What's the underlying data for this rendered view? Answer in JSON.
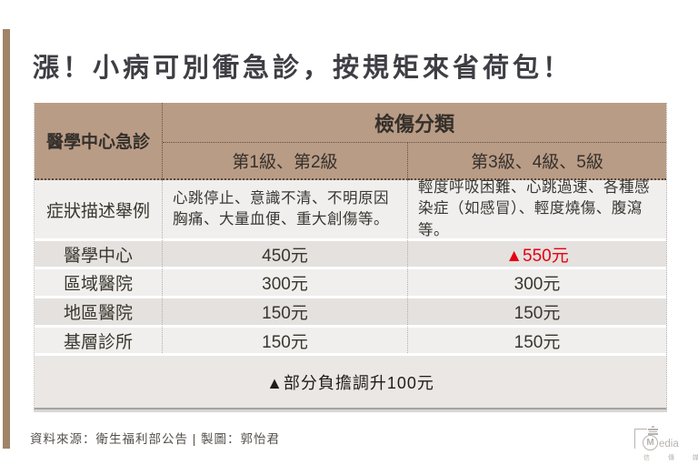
{
  "page": {
    "source_credit": "資料來源：衛生福利部公告 | 製圖：郭怡君"
  },
  "chart_data": {
    "type": "table",
    "title": "漲！小病可別衝急診，按規矩來省荷包！",
    "corner_header": "醫學中心急診",
    "group_header": "檢傷分類",
    "columns": [
      "第1級、第2級",
      "第3級、4級、5級"
    ],
    "rows": [
      {
        "label": "症狀描述舉例",
        "c1": "心跳停止、意識不清、不明原因胸痛、大量血便、重大創傷等。",
        "c2": "輕度呼吸困難、心跳過速、各種感染症（如感冒）、輕度燒傷、腹瀉等。"
      },
      {
        "label": "醫學中心",
        "c1": "450元",
        "c2": "▲550元"
      },
      {
        "label": "區域醫院",
        "c1": "300元",
        "c2": "300元"
      },
      {
        "label": "地區醫院",
        "c1": "150元",
        "c2": "150元"
      },
      {
        "label": "基層診所",
        "c1": "150元",
        "c2": "150元"
      }
    ],
    "note": "▲部分負擔調升100元",
    "highlight": {
      "row": "醫學中心",
      "column": "第3級、4級、5級",
      "value": "▲550元",
      "color": "#e60012"
    }
  },
  "logo": {
    "circle_letter": "M",
    "wordmark_rest": "edia",
    "cjk_name": "信 傳 媒"
  },
  "colors": {
    "accent_bar": "#a08468",
    "table_header_bg": "#b99c86",
    "row_light": "#f1efed",
    "row_dark": "#e4e1de",
    "note_row_bg": "#eae7e5",
    "highlight_red": "#e60012",
    "title_text": "#3e3e44"
  }
}
